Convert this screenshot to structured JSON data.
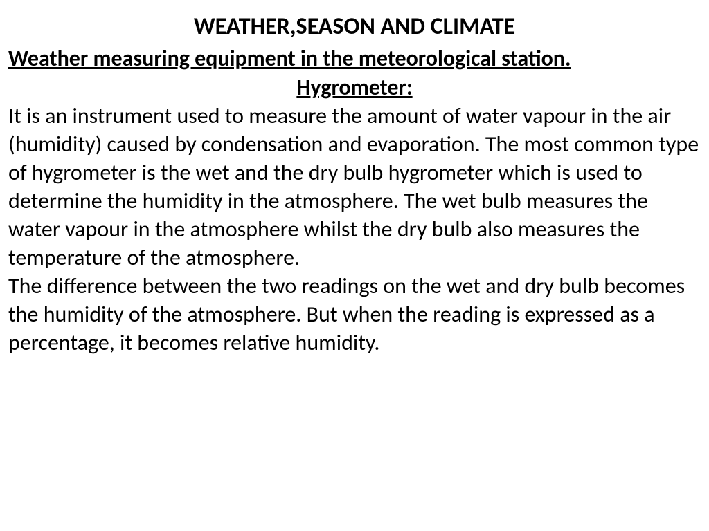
{
  "title": "WEATHER,SEASON AND CLIMATE",
  "subtitle": "Weather measuring equipment in the meteorological station.",
  "section_heading": "Hygrometer:",
  "paragraph1": "It is an instrument used to measure the amount of water vapour in the air (humidity) caused by condensation and evaporation. The most common type of hygrometer is the wet and the dry bulb hygrometer which is used to determine the humidity in the atmosphere. The wet bulb measures the water vapour in the atmosphere whilst the dry bulb also measures the temperature of the atmosphere.",
  "paragraph2": "The difference between the two readings on the wet and dry bulb becomes the humidity of the atmosphere. But when the reading is expressed as a percentage, it becomes relative humidity.",
  "colors": {
    "background": "#ffffff",
    "text": "#000000"
  },
  "typography": {
    "title_fontsize": 34,
    "subtitle_fontsize": 32,
    "body_fontsize": 32,
    "title_weight": "bold",
    "subtitle_weight": "bold",
    "body_weight": "normal"
  }
}
